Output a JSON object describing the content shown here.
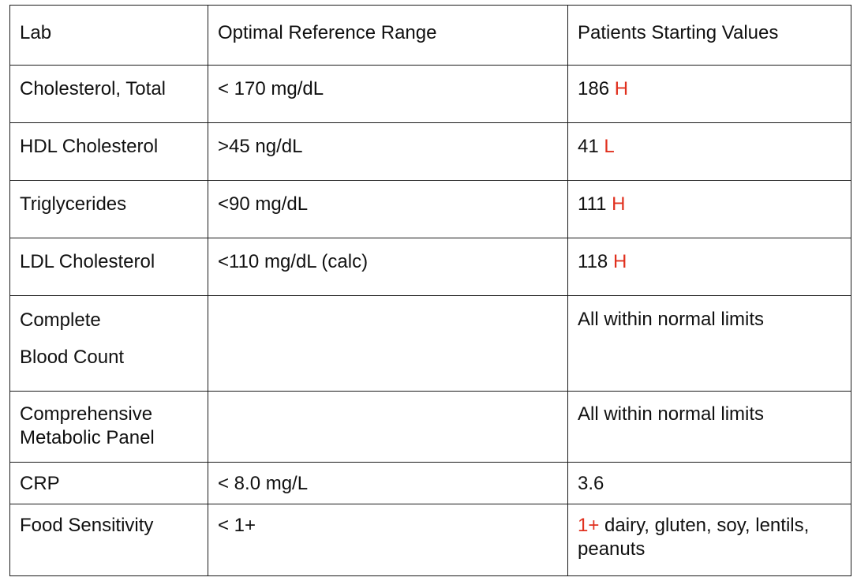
{
  "table": {
    "headers": {
      "lab": "Lab",
      "range": "Optimal Reference Range",
      "values": "Patients Starting Values"
    },
    "rows": [
      {
        "lab": "Cholesterol, Total",
        "range": "< 170 mg/dL",
        "value": "186",
        "flag": "H",
        "extra": ""
      },
      {
        "lab": "HDL Cholesterol",
        "range": ">45 ng/dL",
        "value": "41",
        "flag": "L",
        "extra": ""
      },
      {
        "lab": "Triglycerides",
        "range": "<90 mg/dL",
        "value": "111",
        "flag": "H",
        "extra": ""
      },
      {
        "lab": "LDL Cholesterol",
        "range": "<110 mg/dL (calc)",
        "value": "118",
        "flag": "H",
        "extra": ""
      },
      {
        "lab": "Complete Blood Count",
        "range": "",
        "value": "All within normal limits",
        "flag": "",
        "extra": ""
      },
      {
        "lab": "Comprehensive Metabolic Panel",
        "range": "",
        "value": "All within normal limits",
        "flag": "",
        "extra": ""
      },
      {
        "lab": "CRP",
        "range": "< 8.0 mg/L",
        "value": "3.6",
        "flag": "",
        "extra": ""
      },
      {
        "lab": "Food Sensitivity",
        "range": "< 1+",
        "value": "",
        "flag": "1+",
        "extra": "dairy, gluten, soy, lentils, peanuts"
      }
    ]
  },
  "colors": {
    "flag": "#e0301e",
    "border": "#1a1a1a",
    "text": "#111111"
  }
}
